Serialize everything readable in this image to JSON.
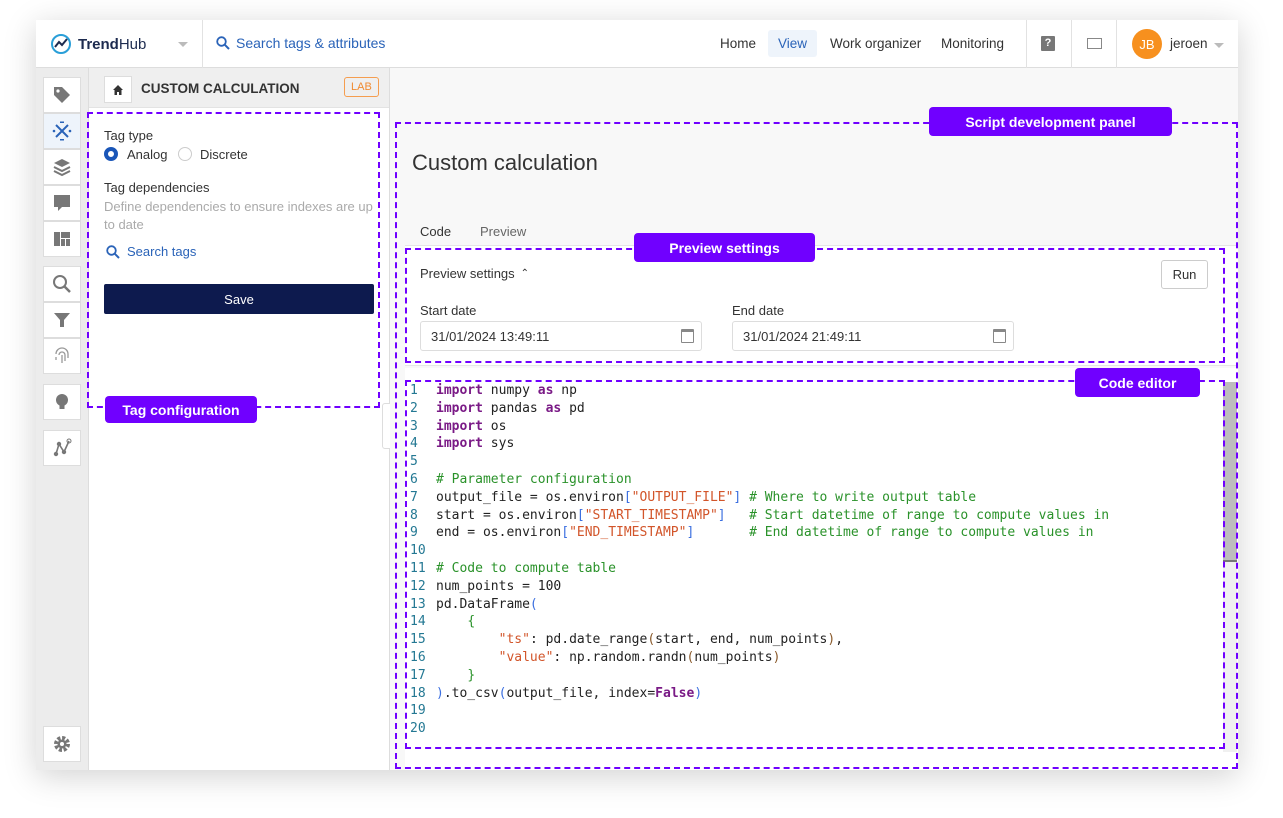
{
  "header": {
    "app_name_bold": "Trend",
    "app_name_light": "Hub",
    "search_label": "Search tags & attributes",
    "nav": [
      {
        "label": "Home",
        "active": false
      },
      {
        "label": "View",
        "active": true
      },
      {
        "label": "Work organizer",
        "active": false
      },
      {
        "label": "Monitoring",
        "active": false
      }
    ],
    "user_initials": "JB",
    "user_name": "jeroen",
    "accent": "#2a63b8",
    "avatar_color": "#f7901e"
  },
  "rail": {
    "icons": [
      "tag-icon",
      "calculation-icon",
      "layers-icon",
      "comment-icon",
      "dashboard-icon",
      "search-icon",
      "filter-icon",
      "fingerprint-icon",
      "lightbulb-icon",
      "graph-icon",
      "gear-icon"
    ],
    "active": "calculation-icon"
  },
  "left_panel": {
    "title": "CUSTOM CALCULATION",
    "badge": "LAB",
    "tag_type_label": "Tag type",
    "tag_type_options": [
      {
        "label": "Analog",
        "selected": true
      },
      {
        "label": "Discrete",
        "selected": false
      }
    ],
    "dependencies_label": "Tag dependencies",
    "dependencies_help": "Define dependencies to ensure indexes are up to date",
    "search_tags_label": "Search tags",
    "save_label": "Save"
  },
  "main": {
    "title": "Custom calculation",
    "tabs": [
      {
        "label": "Code",
        "active": true
      },
      {
        "label": "Preview",
        "active": false
      }
    ],
    "preview_settings": {
      "label": "Preview settings",
      "expanded": true,
      "run_label": "Run",
      "start_label": "Start date",
      "start_value": "31/01/2024 13:49:11",
      "end_label": "End date",
      "end_value": "31/01/2024 21:49:11"
    },
    "code_lines": [
      [
        [
          "k",
          "import"
        ],
        [
          "",
          " numpy "
        ],
        [
          "k",
          "as"
        ],
        [
          "",
          " np"
        ]
      ],
      [
        [
          "k",
          "import"
        ],
        [
          "",
          " pandas "
        ],
        [
          "k",
          "as"
        ],
        [
          "",
          " pd"
        ]
      ],
      [
        [
          "k",
          "import"
        ],
        [
          "",
          " os"
        ]
      ],
      [
        [
          "k",
          "import"
        ],
        [
          "",
          " sys"
        ]
      ],
      [],
      [
        [
          "c",
          "# Parameter configuration"
        ]
      ],
      [
        [
          "",
          "output_file = os.environ"
        ],
        [
          "b",
          "["
        ],
        [
          "s",
          "\"OUTPUT_FILE\""
        ],
        [
          "b",
          "]"
        ],
        [
          "",
          " "
        ],
        [
          "c",
          "# Where to write output table"
        ]
      ],
      [
        [
          "",
          "start = os.environ"
        ],
        [
          "b",
          "["
        ],
        [
          "s",
          "\"START_TIMESTAMP\""
        ],
        [
          "b",
          "]"
        ],
        [
          "",
          "   "
        ],
        [
          "c",
          "# Start datetime of range to compute values in"
        ]
      ],
      [
        [
          "",
          "end = os.environ"
        ],
        [
          "b",
          "["
        ],
        [
          "s",
          "\"END_TIMESTAMP\""
        ],
        [
          "b",
          "]"
        ],
        [
          "",
          "       "
        ],
        [
          "c",
          "# End datetime of range to compute values in"
        ]
      ],
      [],
      [
        [
          "c",
          "# Code to compute table"
        ]
      ],
      [
        [
          "",
          "num_points = 100"
        ]
      ],
      [
        [
          "",
          "pd.DataFrame"
        ],
        [
          "b",
          "("
        ]
      ],
      [
        [
          "",
          "    "
        ],
        [
          "g",
          "{"
        ]
      ],
      [
        [
          "",
          "        "
        ],
        [
          "s",
          "\"ts\""
        ],
        [
          "",
          ": pd.date_range"
        ],
        [
          "p",
          "("
        ],
        [
          "",
          "start, end, num_points"
        ],
        [
          "p",
          ")"
        ],
        [
          "",
          ","
        ]
      ],
      [
        [
          "",
          "        "
        ],
        [
          "s",
          "\"value\""
        ],
        [
          "",
          ": np.random.randn"
        ],
        [
          "p",
          "("
        ],
        [
          "",
          "num_points"
        ],
        [
          "p",
          ")"
        ]
      ],
      [
        [
          "",
          "    "
        ],
        [
          "g",
          "}"
        ]
      ],
      [
        [
          "b",
          ")"
        ],
        [
          "",
          ".to_csv"
        ],
        [
          "b",
          "("
        ],
        [
          "",
          "output_file, index="
        ],
        [
          "k",
          "False"
        ],
        [
          "b",
          ")"
        ]
      ],
      [],
      []
    ]
  },
  "annotations": {
    "tag_configuration": "Tag configuration",
    "script_panel": "Script development panel",
    "preview_settings": "Preview settings",
    "code_editor": "Code editor",
    "color": "#7000ff"
  }
}
